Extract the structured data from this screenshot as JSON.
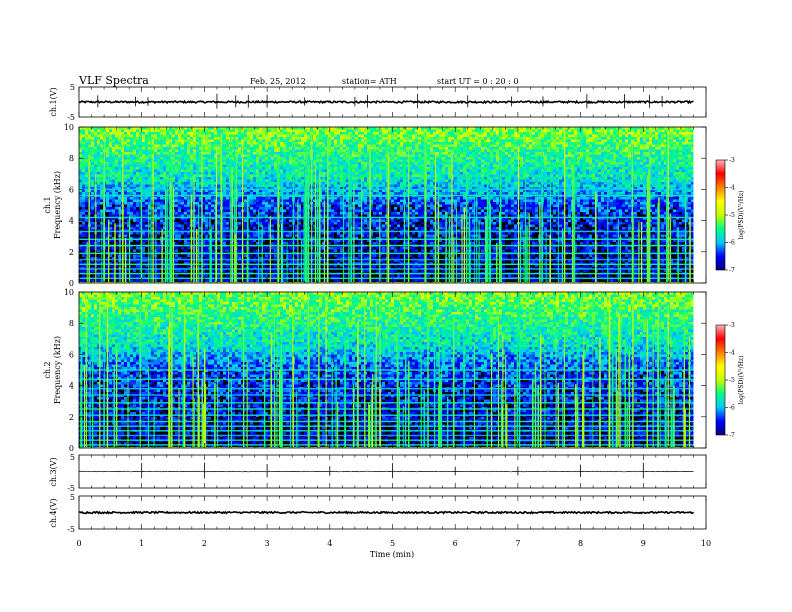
{
  "header": {
    "title": "VLF  Spectra",
    "date": "Feb. 25, 2012",
    "station": "station= ATH",
    "start": "start  UT =   0 : 20 : 0"
  },
  "chart_data": [
    {
      "type": "line",
      "name": "ch1-waveform",
      "ylabel": "ch.1(V)",
      "ylim": [
        -5,
        5
      ],
      "yticks": [
        "5",
        "-5"
      ],
      "xlim": [
        0,
        10
      ],
      "baseline_volts": 0.0,
      "noise_volts": 0.3,
      "spikes_min": [
        0.3,
        0.9,
        1.1,
        2.2,
        2.5,
        2.7,
        3.0,
        3.6,
        4.4,
        4.6,
        5.4,
        6.2,
        6.9,
        7.4,
        8.1,
        8.7,
        9.1,
        9.3
      ]
    },
    {
      "type": "heatmap",
      "name": "ch1-spectrogram",
      "ylabel_top": "ch.1",
      "ylabel": "Frequency  (kHz)",
      "ylim": [
        0,
        10
      ],
      "yticks": [
        "0",
        "2",
        "4",
        "6",
        "8",
        "10"
      ],
      "xlim": [
        0,
        10
      ],
      "data_end_min": 9.8,
      "colorbar": {
        "label": "log(PSD)(V²/Hz)",
        "range": [
          -7,
          -3
        ],
        "ticks": [
          "-3",
          "-4",
          "-5",
          "-6",
          "-7"
        ]
      },
      "bands_khz": [
        0.3,
        0.6,
        0.9,
        1.2,
        1.5,
        1.9,
        2.4,
        2.8,
        3.3,
        4.2,
        5.6,
        6.0
      ]
    },
    {
      "type": "heatmap",
      "name": "ch2-spectrogram",
      "ylabel_top": "ch.2",
      "ylabel": "Frequency  (kHz)",
      "ylim": [
        0,
        10
      ],
      "yticks": [
        "0",
        "2",
        "4",
        "6",
        "8",
        "10"
      ],
      "xlim": [
        0,
        10
      ],
      "data_end_min": 9.8,
      "colorbar": {
        "label": "log(PSD)(V²/Hz)",
        "range": [
          -7,
          -3
        ],
        "ticks": [
          "-3",
          "-4",
          "-5",
          "-6",
          "-7"
        ]
      },
      "bands_khz": [
        0.2,
        0.5,
        0.8,
        1.1,
        1.4,
        1.7,
        2.1,
        2.5,
        2.9,
        3.4,
        3.8,
        4.4,
        5.0
      ]
    },
    {
      "type": "line",
      "name": "ch3-waveform",
      "ylabel": "ch.3(V)",
      "ylim": [
        -5,
        5
      ],
      "yticks": [
        "5",
        "-5"
      ],
      "xlim": [
        0,
        10
      ],
      "baseline_volts": 0.0,
      "noise_volts": 0.1,
      "spikes_min": [
        1.0,
        2.0,
        3.0,
        4.0,
        5.0,
        6.0,
        7.0,
        8.0,
        9.0
      ]
    },
    {
      "type": "line",
      "name": "ch4-waveform",
      "ylabel": "ch.4(V)",
      "ylim": [
        -5,
        5
      ],
      "yticks": [
        "5",
        "-5"
      ],
      "xlim": [
        0,
        10
      ],
      "baseline_volts": 0.0,
      "noise_volts": 0.25,
      "spikes_min": []
    }
  ],
  "xaxis": {
    "label": "Time  (min)",
    "ticks": [
      "0",
      "1",
      "2",
      "3",
      "4",
      "5",
      "6",
      "7",
      "8",
      "9",
      "10"
    ]
  },
  "colors": {
    "colorscale": [
      "#00007f",
      "#0000ff",
      "#00c8ff",
      "#00ff80",
      "#c8ff00",
      "#ffff00",
      "#ff8000",
      "#ff0000",
      "#ffb4b4"
    ],
    "background_low": "#000000"
  }
}
